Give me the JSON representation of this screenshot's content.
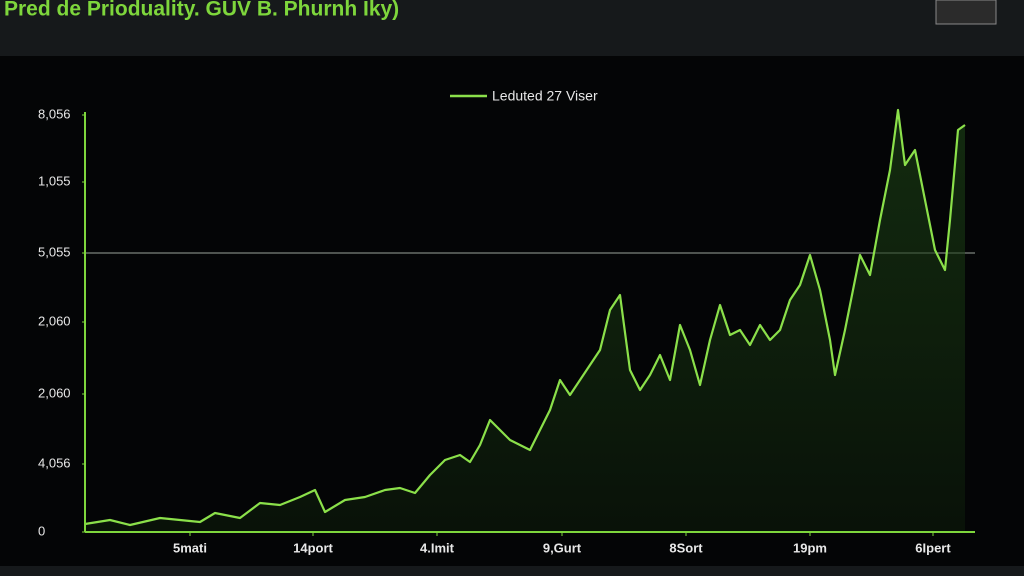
{
  "chart_data": {
    "type": "line",
    "title": "Pred de Prioduality. GUV B. Phurnh Iky)",
    "legend_position": "top-center",
    "x": [
      0,
      25,
      45,
      75,
      95,
      115,
      130,
      155,
      175,
      195,
      215,
      230,
      240,
      260,
      280,
      300,
      315,
      330,
      345,
      360,
      375,
      385,
      395,
      405,
      415,
      425,
      435,
      445,
      455,
      465,
      475,
      485,
      495,
      505,
      515,
      525,
      535,
      545,
      555,
      565,
      575,
      585,
      595,
      605,
      615,
      625,
      635,
      645,
      655,
      665,
      675,
      685,
      695,
      705,
      715,
      725,
      735,
      745,
      750,
      760,
      770,
      775,
      785,
      795,
      805,
      813,
      820,
      830,
      840,
      850,
      860,
      865,
      873,
      880
    ],
    "series": [
      {
        "name": "Leduted 27 Viser",
        "color": "#8be04a",
        "values": [
          8,
          12,
          7,
          14,
          12,
          10,
          19,
          14,
          29,
          27,
          35,
          42,
          20,
          32,
          35,
          42,
          44,
          39,
          57,
          72,
          77,
          70,
          87,
          112,
          102,
          92,
          87,
          82,
          102,
          122,
          152,
          137,
          152,
          167,
          182,
          222,
          237,
          162,
          142,
          157,
          177,
          152,
          207,
          182,
          147,
          192,
          227,
          197,
          202,
          187,
          207,
          192,
          202,
          232,
          247,
          277,
          242,
          192,
          157,
          202,
          252,
          277,
          257,
          312,
          362,
          422,
          367,
          382,
          332,
          282,
          262,
          312,
          402,
          407
        ]
      }
    ],
    "xlim": [
      0,
      890
    ],
    "xticks": [
      {
        "value": 105,
        "label": "5mati"
      },
      {
        "value": 228,
        "label": "14port"
      },
      {
        "value": 352,
        "label": "4.Imit"
      },
      {
        "value": 477,
        "label": "9,Gurt"
      },
      {
        "value": 601,
        "label": "8Sort"
      },
      {
        "value": 725,
        "label": "19pm"
      },
      {
        "value": 848,
        "label": "6Ipert"
      }
    ],
    "ylim": [
      0,
      432
    ],
    "yticks": [
      0,
      {
        "value": 68,
        "label": "4,056"
      },
      {
        "value": 138,
        "label": "2,060"
      },
      {
        "value": 210,
        "label": "2,060"
      },
      {
        "value": 279,
        "label": "5,055"
      },
      {
        "value": 350,
        "label": "1,055"
      },
      {
        "value": 417,
        "label": "8,056"
      }
    ],
    "reference_line": 279,
    "axis_color": "#7ed63c"
  }
}
